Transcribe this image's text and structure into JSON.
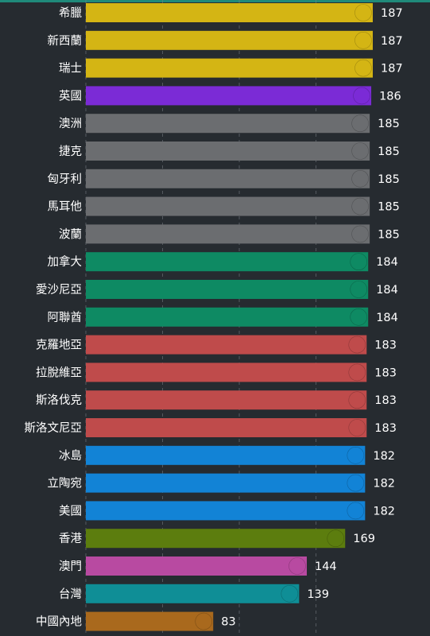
{
  "chart_data": {
    "type": "bar",
    "orientation": "horizontal",
    "title": "",
    "xlabel": "",
    "ylabel": "",
    "xlim": [
      0,
      199
    ],
    "grid": true,
    "legend": "none",
    "series": [
      {
        "label": "希臘",
        "value": 187,
        "color": "#d4b514",
        "flag": "greece-flag-icon"
      },
      {
        "label": "新西蘭",
        "value": 187,
        "color": "#d4b514",
        "flag": "new-zealand-flag-icon"
      },
      {
        "label": "瑞士",
        "value": 187,
        "color": "#d4b514",
        "flag": "switzerland-flag-icon"
      },
      {
        "label": "英國",
        "value": 186,
        "color": "#7b2bd6",
        "flag": "uk-flag-icon"
      },
      {
        "label": "澳洲",
        "value": 185,
        "color": "#6b6d70",
        "flag": "australia-flag-icon"
      },
      {
        "label": "捷克",
        "value": 185,
        "color": "#6b6d70",
        "flag": "czech-flag-icon"
      },
      {
        "label": "匈牙利",
        "value": 185,
        "color": "#6b6d70",
        "flag": "hungary-flag-icon"
      },
      {
        "label": "馬耳他",
        "value": 185,
        "color": "#6b6d70",
        "flag": "malta-flag-icon"
      },
      {
        "label": "波蘭",
        "value": 185,
        "color": "#6b6d70",
        "flag": "poland-flag-icon"
      },
      {
        "label": "加拿大",
        "value": 184,
        "color": "#0e8a63",
        "flag": "canada-flag-icon"
      },
      {
        "label": "愛沙尼亞",
        "value": 184,
        "color": "#0e8a63",
        "flag": "estonia-flag-icon"
      },
      {
        "label": "阿聯酋",
        "value": 184,
        "color": "#0e8a63",
        "flag": "uae-flag-icon"
      },
      {
        "label": "克羅地亞",
        "value": 183,
        "color": "#bf4b4b",
        "flag": "croatia-flag-icon"
      },
      {
        "label": "拉脫維亞",
        "value": 183,
        "color": "#bf4b4b",
        "flag": "latvia-flag-icon"
      },
      {
        "label": "斯洛伐克",
        "value": 183,
        "color": "#bf4b4b",
        "flag": "slovakia-flag-icon"
      },
      {
        "label": "斯洛文尼亞",
        "value": 183,
        "color": "#bf4b4b",
        "flag": "slovenia-flag-icon"
      },
      {
        "label": "冰島",
        "value": 182,
        "color": "#1283d6",
        "flag": "iceland-flag-icon"
      },
      {
        "label": "立陶宛",
        "value": 182,
        "color": "#1283d6",
        "flag": "lithuania-flag-icon"
      },
      {
        "label": "美國",
        "value": 182,
        "color": "#1283d6",
        "flag": "usa-flag-icon"
      },
      {
        "label": "香港",
        "value": 169,
        "color": "#5c7d0e",
        "flag": "hong-kong-flag-icon"
      },
      {
        "label": "澳門",
        "value": 144,
        "color": "#b84aa1",
        "flag": "macau-flag-icon"
      },
      {
        "label": "台灣",
        "value": 139,
        "color": "#0f8e96",
        "flag": "taiwan-flag-icon"
      },
      {
        "label": "中國內地",
        "value": 83,
        "color": "#a9691d",
        "flag": "china-flag-icon"
      }
    ]
  }
}
